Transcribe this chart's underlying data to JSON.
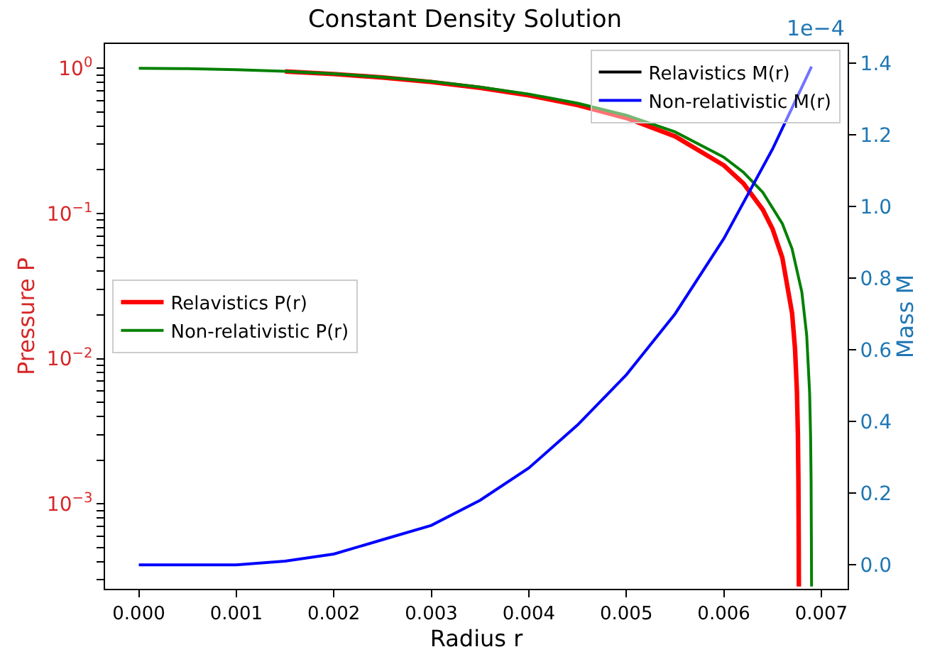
{
  "chart_data": {
    "type": "line",
    "title": "Constant Density Solution",
    "xlabel": "Radius r",
    "ylabel": "Pressure P",
    "y2label": "Mass M",
    "xlim": [
      -0.000346,
      0.00727
    ],
    "xticks": [
      {
        "value": 0,
        "label": "0.000"
      },
      {
        "value": 0.001,
        "label": "0.001"
      },
      {
        "value": 0.002,
        "label": "0.002"
      },
      {
        "value": 0.003,
        "label": "0.003"
      },
      {
        "value": 0.004,
        "label": "0.004"
      },
      {
        "value": 0.005,
        "label": "0.005"
      },
      {
        "value": 0.006,
        "label": "0.006"
      },
      {
        "value": 0.007,
        "label": "0.007"
      }
    ],
    "log": "y",
    "ylim": [
      0.00026,
      1.47
    ],
    "yticks": [
      {
        "value": 0.001,
        "label": "10$^{−3}$"
      },
      {
        "value": 0.01,
        "label": "10$^{−2}$"
      },
      {
        "value": 0.1,
        "label": "10$^{−1}$"
      },
      {
        "value": 1,
        "label": "10$^{0}$"
      },
      {
        "value": 0.0003,
        "label": null
      },
      {
        "value": 0.0004,
        "label": null
      },
      {
        "value": 0.0005,
        "label": null
      },
      {
        "value": 0.0006,
        "label": null
      },
      {
        "value": 0.0007,
        "label": null
      },
      {
        "value": 0.0008,
        "label": null
      },
      {
        "value": 0.0009,
        "label": null
      },
      {
        "value": 0.002,
        "label": null
      },
      {
        "value": 0.003,
        "label": null
      },
      {
        "value": 0.004,
        "label": null
      },
      {
        "value": 0.005,
        "label": null
      },
      {
        "value": 0.006,
        "label": null
      },
      {
        "value": 0.007,
        "label": null
      },
      {
        "value": 0.008,
        "label": null
      },
      {
        "value": 0.009,
        "label": null
      },
      {
        "value": 0.02,
        "label": null
      },
      {
        "value": 0.03,
        "label": null
      },
      {
        "value": 0.04,
        "label": null
      },
      {
        "value": 0.05,
        "label": null
      },
      {
        "value": 0.06,
        "label": null
      },
      {
        "value": 0.07,
        "label": null
      },
      {
        "value": 0.08,
        "label": null
      },
      {
        "value": 0.09,
        "label": null
      },
      {
        "value": 0.2,
        "label": null
      },
      {
        "value": 0.3,
        "label": null
      },
      {
        "value": 0.4,
        "label": null
      },
      {
        "value": 0.5,
        "label": null
      },
      {
        "value": 0.6,
        "label": null
      },
      {
        "value": 0.7,
        "label": null
      },
      {
        "value": 0.8,
        "label": null
      },
      {
        "value": 0.9,
        "label": null
      }
    ],
    "y2lim": [
      -0.067,
      1.453
    ],
    "y2ticks": [
      {
        "value": 0,
        "label": "0.0"
      },
      0.2,
      0.4,
      0.6,
      0.8,
      {
        "value": 1,
        "label": "1.0"
      },
      1.2,
      1.4
    ],
    "annotations": [
      "1e−4"
    ],
    "legend": [
      "left",
      "top right"
    ],
    "marker": "none",
    "line_style": "solid",
    "series": [
      {
        "name": "Relavistics P(r)",
        "color": "#ff0000",
        "x": [
          0.0015,
          0.002,
          0.0025,
          0.003,
          0.0035,
          0.004,
          0.0045,
          0.005,
          0.0055,
          0.006,
          0.0062,
          0.0064,
          0.0065,
          0.0066,
          0.0067,
          0.00673,
          0.00675,
          0.00676,
          0.006765,
          0.006768,
          0.00677
        ],
        "values": [
          0.9509,
          0.9127,
          0.8636,
          0.8036,
          0.7327,
          0.6509,
          0.5582,
          0.4545,
          0.34,
          0.2145,
          0.1613,
          0.1063,
          0.0782,
          0.0496,
          0.0206,
          0.0118,
          0.0059,
          0.00295,
          0.00148,
          0.00059,
          0.00027
        ]
      },
      {
        "name": "Non-relativistic P(r)",
        "color": "#008000",
        "x": [
          0,
          0.0005,
          0.001,
          0.0015,
          0.002,
          0.0025,
          0.003,
          0.0035,
          0.004,
          0.0045,
          0.005,
          0.0055,
          0.006,
          0.0062,
          0.0064,
          0.0066,
          0.0067,
          0.0068,
          0.00685,
          0.00688,
          0.00689,
          0.006895,
          0.006898,
          0.0069
        ],
        "values": [
          1,
          0.9947,
          0.979,
          0.9527,
          0.916,
          0.8687,
          0.811,
          0.7427,
          0.664,
          0.5747,
          0.4749,
          0.3646,
          0.2439,
          0.1926,
          0.1397,
          0.0851,
          0.0571,
          0.0288,
          0.0145,
          0.0058,
          0.0029,
          0.00145,
          0.00058,
          0.00027
        ]
      },
      {
        "name": "Relavistics M(r)",
        "color": "#000000",
        "axis": "y2",
        "values": [
          null,
          null
        ]
      },
      {
        "name": "Non-relativistic M(r)",
        "color": "#0000ff",
        "axis": "y2",
        "x": [
          0,
          0.0005,
          0.001,
          0.0015,
          0.002,
          0.0025,
          0.003,
          0.0035,
          0.004,
          0.0045,
          0.005,
          0.0055,
          0.006,
          0.0065,
          0.0069
        ],
        "values": [
          0,
          0,
          0,
          0.01,
          0.03,
          0.07,
          0.11,
          0.18,
          0.27,
          0.39,
          0.53,
          0.7,
          0.91,
          1.16,
          1.39
        ]
      }
    ]
  }
}
